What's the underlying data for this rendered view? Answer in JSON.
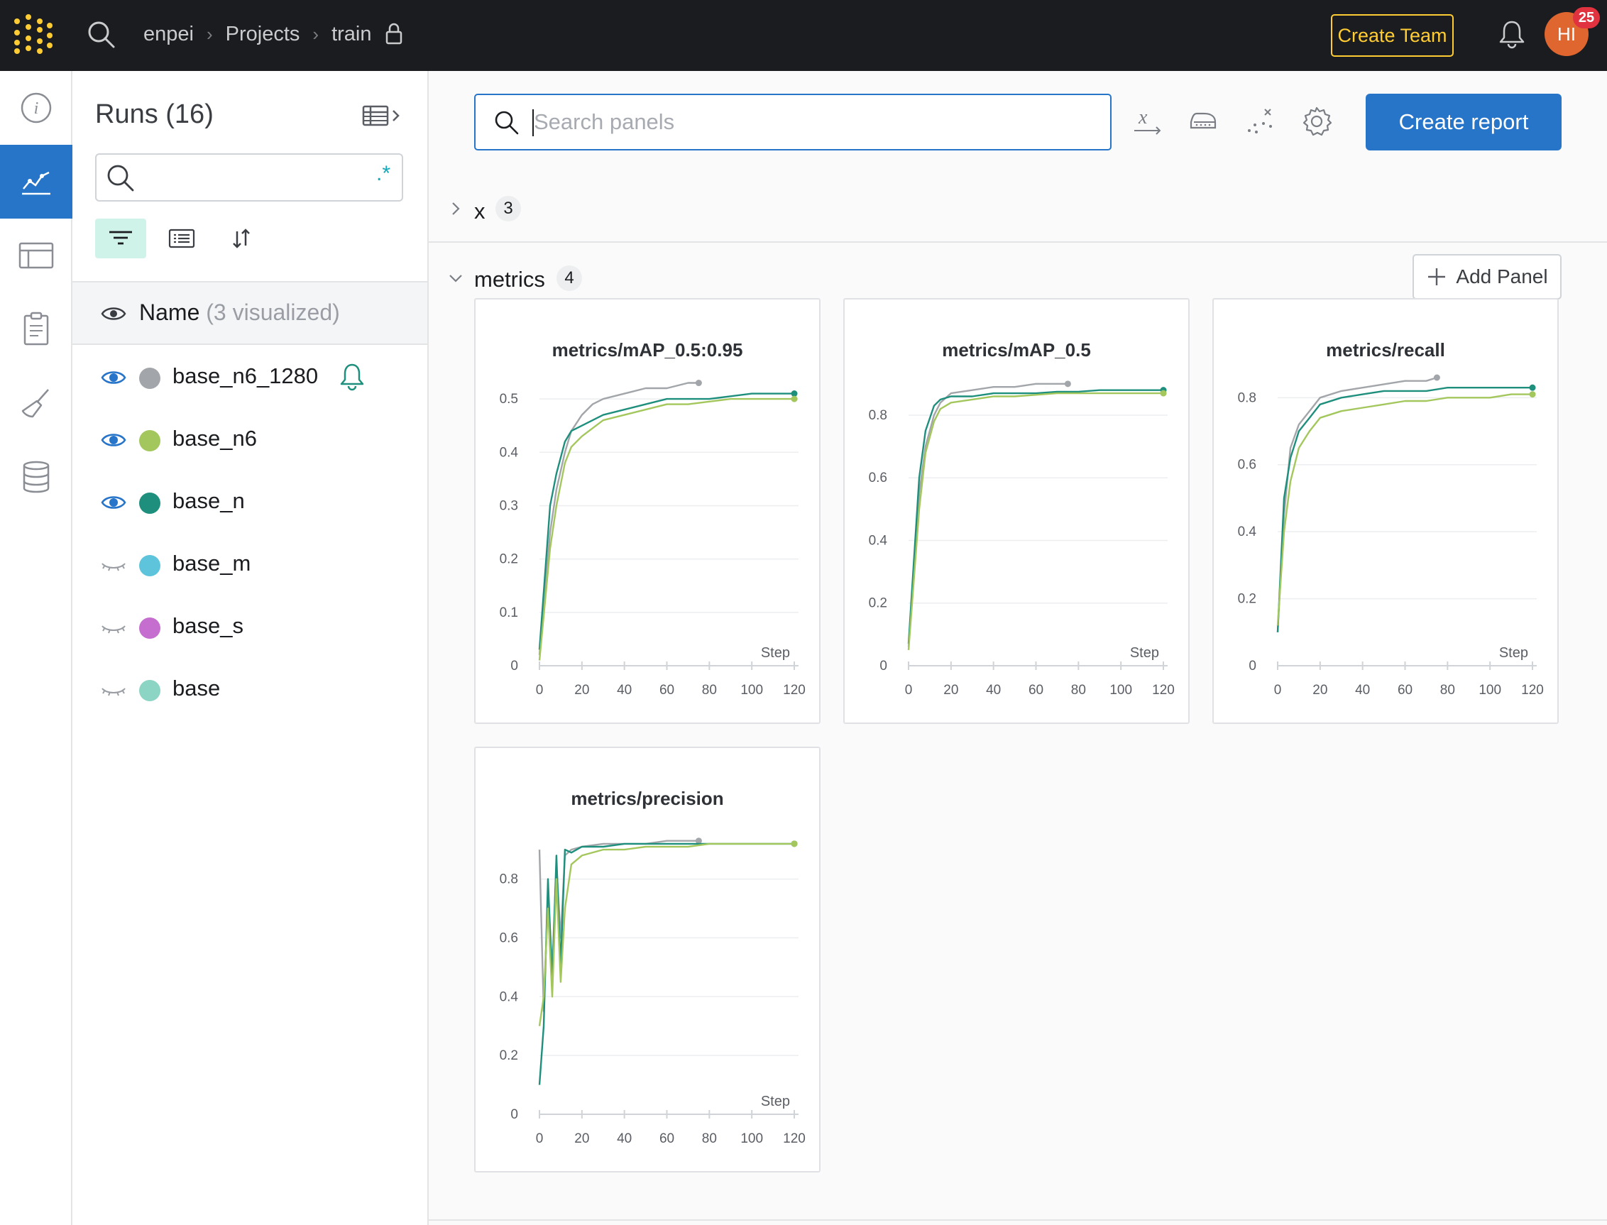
{
  "topbar": {
    "breadcrumb": [
      "enpei",
      "Projects",
      "train"
    ],
    "create_team_label": "Create Team",
    "avatar_initials": "HI",
    "notification_count": "25"
  },
  "colors": {
    "accent": "#2775c9",
    "highlight": "#ffcc33",
    "avatar": "#e0662f"
  },
  "left_nav": [
    {
      "icon": "info-icon",
      "active": false
    },
    {
      "icon": "chart-icon",
      "active": true
    },
    {
      "icon": "table-icon",
      "active": false
    },
    {
      "icon": "report-icon",
      "active": false
    },
    {
      "icon": "sweep-broom-icon",
      "active": false
    },
    {
      "icon": "database-icon",
      "active": false
    }
  ],
  "runs": {
    "title": "Runs (16)",
    "search_value": "",
    "regex_label": ".*",
    "name_header": "Name",
    "name_header_muted": "(3 visualized)",
    "items": [
      {
        "name": "base_n6_1280",
        "color": "#a2a5a9",
        "visible": true,
        "alert": true
      },
      {
        "name": "base_n6",
        "color": "#a3c75c",
        "visible": true,
        "alert": false
      },
      {
        "name": "base_n",
        "color": "#1f8f7d",
        "visible": true,
        "alert": false
      },
      {
        "name": "base_m",
        "color": "#5ec4dc",
        "visible": false,
        "alert": false
      },
      {
        "name": "base_s",
        "color": "#c56ecf",
        "visible": false,
        "alert": false
      },
      {
        "name": "base",
        "color": "#8cd4c3",
        "visible": false,
        "alert": false
      }
    ]
  },
  "main": {
    "search_placeholder": "Search panels",
    "create_report_label": "Create report",
    "sections": [
      {
        "name": "x",
        "count": "3",
        "expanded": false
      },
      {
        "name": "metrics",
        "count": "4",
        "expanded": true
      }
    ],
    "add_panel_label": "Add Panel"
  },
  "chart_data": [
    {
      "type": "line",
      "title": "metrics/mAP_0.5:0.95",
      "xlabel": "Step",
      "xlim": [
        0,
        122
      ],
      "ylim": [
        0,
        0.54
      ],
      "xticks": [
        "0",
        "20",
        "40",
        "60",
        "80",
        "100",
        "120"
      ],
      "yticks": [
        "0",
        "0.1",
        "0.2",
        "0.3",
        "0.4",
        "0.5"
      ],
      "series": [
        {
          "name": "base_n6_1280",
          "color": "#a2a5a9",
          "x": [
            0,
            5,
            8,
            12,
            15,
            20,
            25,
            30,
            40,
            50,
            60,
            70,
            75
          ],
          "y": [
            0.02,
            0.25,
            0.33,
            0.4,
            0.44,
            0.47,
            0.49,
            0.5,
            0.51,
            0.52,
            0.52,
            0.53,
            0.53
          ]
        },
        {
          "name": "base_n",
          "color": "#1f8f7d",
          "x": [
            0,
            5,
            8,
            12,
            15,
            20,
            30,
            40,
            50,
            60,
            70,
            80,
            90,
            100,
            110,
            120
          ],
          "y": [
            0.03,
            0.3,
            0.36,
            0.42,
            0.44,
            0.45,
            0.47,
            0.48,
            0.49,
            0.5,
            0.5,
            0.5,
            0.505,
            0.51,
            0.51,
            0.51
          ]
        },
        {
          "name": "base_n6",
          "color": "#a3c75c",
          "x": [
            0,
            5,
            8,
            12,
            15,
            20,
            30,
            40,
            50,
            60,
            70,
            80,
            90,
            100,
            110,
            120
          ],
          "y": [
            0.01,
            0.22,
            0.3,
            0.38,
            0.41,
            0.43,
            0.46,
            0.47,
            0.48,
            0.49,
            0.49,
            0.495,
            0.5,
            0.5,
            0.5,
            0.5
          ]
        }
      ]
    },
    {
      "type": "line",
      "title": "metrics/mAP_0.5",
      "xlabel": "Step",
      "xlim": [
        0,
        122
      ],
      "ylim": [
        0,
        0.92
      ],
      "xticks": [
        "0",
        "20",
        "40",
        "60",
        "80",
        "100",
        "120"
      ],
      "yticks": [
        "0",
        "0.2",
        "0.4",
        "0.6",
        "0.8"
      ],
      "series": [
        {
          "name": "base_n6_1280",
          "color": "#a2a5a9",
          "x": [
            0,
            5,
            8,
            12,
            15,
            20,
            30,
            40,
            50,
            60,
            70,
            75
          ],
          "y": [
            0.06,
            0.55,
            0.7,
            0.8,
            0.84,
            0.87,
            0.88,
            0.89,
            0.89,
            0.9,
            0.9,
            0.9
          ]
        },
        {
          "name": "base_n",
          "color": "#1f8f7d",
          "x": [
            0,
            5,
            8,
            12,
            15,
            20,
            30,
            40,
            50,
            60,
            70,
            80,
            90,
            100,
            110,
            120
          ],
          "y": [
            0.07,
            0.6,
            0.75,
            0.83,
            0.85,
            0.86,
            0.86,
            0.87,
            0.87,
            0.87,
            0.875,
            0.875,
            0.88,
            0.88,
            0.88,
            0.88
          ]
        },
        {
          "name": "base_n6",
          "color": "#a3c75c",
          "x": [
            0,
            5,
            8,
            12,
            15,
            20,
            30,
            40,
            50,
            60,
            70,
            80,
            90,
            100,
            110,
            120
          ],
          "y": [
            0.05,
            0.5,
            0.68,
            0.78,
            0.82,
            0.84,
            0.85,
            0.86,
            0.86,
            0.865,
            0.87,
            0.87,
            0.87,
            0.87,
            0.87,
            0.87
          ]
        }
      ]
    },
    {
      "type": "line",
      "title": "metrics/recall",
      "xlabel": "Step",
      "xlim": [
        0,
        122
      ],
      "ylim": [
        0,
        0.86
      ],
      "xticks": [
        "0",
        "20",
        "40",
        "60",
        "80",
        "100",
        "120"
      ],
      "yticks": [
        "0",
        "0.2",
        "0.4",
        "0.6",
        "0.8"
      ],
      "series": [
        {
          "name": "base_n6_1280",
          "color": "#a2a5a9",
          "x": [
            0,
            3,
            6,
            10,
            15,
            20,
            30,
            40,
            50,
            60,
            70,
            75
          ],
          "y": [
            0.1,
            0.45,
            0.65,
            0.72,
            0.76,
            0.8,
            0.82,
            0.83,
            0.84,
            0.85,
            0.85,
            0.86
          ]
        },
        {
          "name": "base_n",
          "color": "#1f8f7d",
          "x": [
            0,
            3,
            6,
            10,
            15,
            20,
            30,
            40,
            50,
            60,
            70,
            80,
            90,
            100,
            110,
            120
          ],
          "y": [
            0.1,
            0.5,
            0.62,
            0.7,
            0.74,
            0.78,
            0.8,
            0.81,
            0.82,
            0.82,
            0.82,
            0.83,
            0.83,
            0.83,
            0.83,
            0.83
          ]
        },
        {
          "name": "base_n6",
          "color": "#a3c75c",
          "x": [
            0,
            3,
            6,
            10,
            15,
            20,
            30,
            40,
            50,
            60,
            70,
            80,
            90,
            100,
            110,
            120
          ],
          "y": [
            0.12,
            0.4,
            0.55,
            0.65,
            0.7,
            0.74,
            0.76,
            0.77,
            0.78,
            0.79,
            0.79,
            0.8,
            0.8,
            0.8,
            0.81,
            0.81
          ]
        }
      ]
    },
    {
      "type": "line",
      "title": "metrics/precision",
      "xlabel": "Step",
      "xlim": [
        0,
        122
      ],
      "ylim": [
        0,
        0.98
      ],
      "xticks": [
        "0",
        "20",
        "40",
        "60",
        "80",
        "100",
        "120"
      ],
      "yticks": [
        "0",
        "0.2",
        "0.4",
        "0.6",
        "0.8"
      ],
      "series": [
        {
          "name": "base_n6_1280",
          "color": "#a2a5a9",
          "x": [
            0,
            2,
            4,
            6,
            8,
            10,
            12,
            15,
            20,
            30,
            40,
            50,
            60,
            70,
            75
          ],
          "y": [
            0.9,
            0.35,
            0.75,
            0.5,
            0.85,
            0.6,
            0.88,
            0.9,
            0.91,
            0.92,
            0.92,
            0.92,
            0.93,
            0.93,
            0.93
          ]
        },
        {
          "name": "base_n",
          "color": "#1f8f7d",
          "x": [
            0,
            2,
            4,
            6,
            8,
            10,
            12,
            15,
            20,
            30,
            40,
            50,
            60,
            70,
            80,
            90,
            100,
            110,
            120
          ],
          "y": [
            0.1,
            0.3,
            0.8,
            0.45,
            0.88,
            0.5,
            0.9,
            0.89,
            0.91,
            0.91,
            0.92,
            0.92,
            0.92,
            0.92,
            0.92,
            0.92,
            0.92,
            0.92,
            0.92
          ]
        },
        {
          "name": "base_n6",
          "color": "#a3c75c",
          "x": [
            0,
            2,
            4,
            6,
            8,
            10,
            12,
            15,
            20,
            30,
            40,
            50,
            60,
            70,
            80,
            90,
            100,
            110,
            120
          ],
          "y": [
            0.3,
            0.4,
            0.7,
            0.4,
            0.8,
            0.45,
            0.7,
            0.85,
            0.88,
            0.9,
            0.9,
            0.91,
            0.91,
            0.91,
            0.92,
            0.92,
            0.92,
            0.92,
            0.92
          ]
        }
      ]
    }
  ]
}
